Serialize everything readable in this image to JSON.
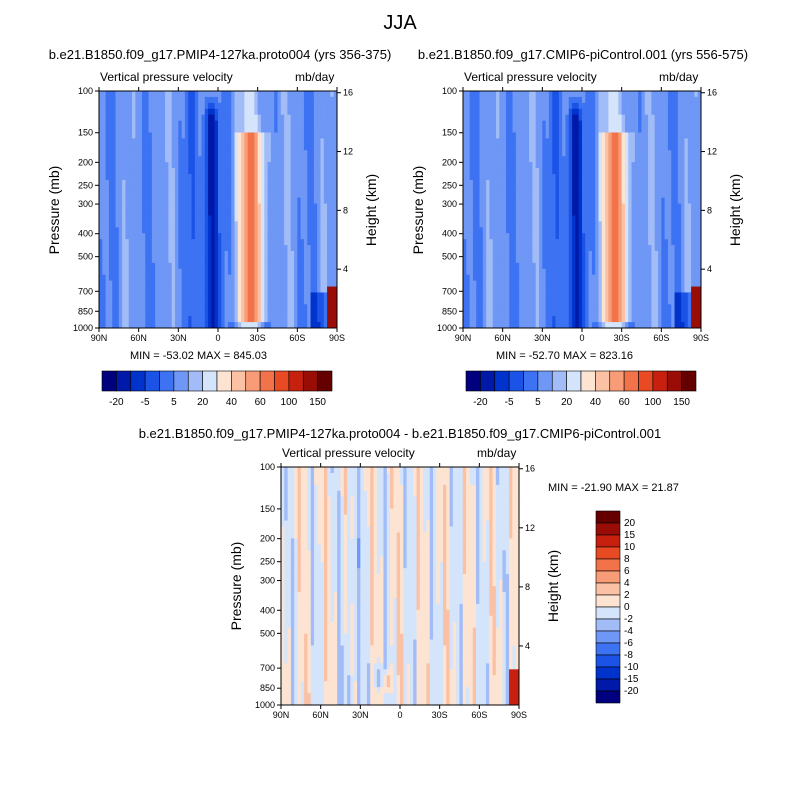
{
  "figure": {
    "title": "JJA"
  },
  "colors": {
    "scale": [
      "#00007f",
      "#0019a8",
      "#0033cc",
      "#1a53e6",
      "#3d73f2",
      "#6f97f5",
      "#a1bcf7",
      "#d4e4fb",
      "#fde4d2",
      "#fbc1a4",
      "#f79c76",
      "#f2734a",
      "#e84a24",
      "#c8200f",
      "#9a0d07",
      "#650000"
    ],
    "diff_scale": [
      "#00007f",
      "#0019a8",
      "#0033cc",
      "#1a53e6",
      "#3d73f2",
      "#6f97f5",
      "#a1bcf7",
      "#d4e4fb",
      "#fde4d2",
      "#fbc1a4",
      "#f79c76",
      "#f2734a",
      "#e84a24",
      "#c8200f",
      "#9a0d07",
      "#650000"
    ]
  },
  "chart_data": [
    {
      "type": "heatmap",
      "id": "top-left",
      "title": "b.e21.B1850.f09_g17.PMIP4-127ka.proto004 (yrs 356-375)",
      "left_string": "Vertical pressure velocity",
      "right_string": "mb/day",
      "xlabel": "",
      "ylabel": "Pressure (mb)",
      "ylabel_right": "Height (km)",
      "x_ticks": [
        "90N",
        "60N",
        "30N",
        "0",
        "30S",
        "60S",
        "90S"
      ],
      "x_values": [
        90,
        60,
        30,
        0,
        -30,
        -60,
        -90
      ],
      "y_ticks": [
        "100",
        "150",
        "200",
        "250",
        "300",
        "400",
        "500",
        "700",
        "850",
        "1000"
      ],
      "y_values": [
        100,
        150,
        200,
        250,
        300,
        400,
        500,
        700,
        850,
        1000
      ],
      "height_ticks": [
        "16",
        "12",
        "8",
        "4"
      ],
      "height_values": [
        16,
        12,
        8,
        4
      ],
      "ylim": [
        1000,
        100
      ],
      "xlim": [
        90,
        -90
      ],
      "min_label": "MIN = -53.02   MAX = 845.03",
      "colorbar_labels": [
        "-20",
        "-5",
        "5",
        "20",
        "40",
        "60",
        "100",
        "150"
      ],
      "features": [
        {
          "name": "descending-band",
          "lat": 5,
          "width": 6,
          "strength": -0.95
        },
        {
          "name": "rising-column",
          "lat": -25,
          "width": 10,
          "strength": 0.85
        }
      ]
    },
    {
      "type": "heatmap",
      "id": "top-right",
      "title": "b.e21.B1850.f09_g17.CMIP6-piControl.001 (yrs 556-575)",
      "left_string": "Vertical pressure velocity",
      "right_string": "mb/day",
      "xlabel": "",
      "ylabel": "Pressure (mb)",
      "ylabel_right": "Height (km)",
      "x_ticks": [
        "90N",
        "60N",
        "30N",
        "0",
        "30S",
        "60S",
        "90S"
      ],
      "x_values": [
        90,
        60,
        30,
        0,
        -30,
        -60,
        -90
      ],
      "y_ticks": [
        "100",
        "150",
        "200",
        "250",
        "300",
        "400",
        "500",
        "700",
        "850",
        "1000"
      ],
      "y_values": [
        100,
        150,
        200,
        250,
        300,
        400,
        500,
        700,
        850,
        1000
      ],
      "height_ticks": [
        "16",
        "12",
        "8",
        "4"
      ],
      "height_values": [
        16,
        12,
        8,
        4
      ],
      "ylim": [
        1000,
        100
      ],
      "xlim": [
        90,
        -90
      ],
      "min_label": "MIN = -52.70   MAX = 823.16",
      "colorbar_labels": [
        "-20",
        "-5",
        "5",
        "20",
        "40",
        "60",
        "100",
        "150"
      ],
      "features": [
        {
          "name": "descending-band",
          "lat": 5,
          "width": 6,
          "strength": -0.95
        },
        {
          "name": "rising-column",
          "lat": -25,
          "width": 10,
          "strength": 0.85
        }
      ]
    },
    {
      "type": "heatmap",
      "id": "bottom-diff",
      "title": "b.e21.B1850.f09_g17.PMIP4-127ka.proto004 - b.e21.B1850.f09_g17.CMIP6-piControl.001",
      "left_string": "Vertical pressure velocity",
      "right_string": "mb/day",
      "xlabel": "",
      "ylabel": "Pressure (mb)",
      "ylabel_right": "Height (km)",
      "x_ticks": [
        "90N",
        "60N",
        "30N",
        "0",
        "30S",
        "60S",
        "90S"
      ],
      "x_values": [
        90,
        60,
        30,
        0,
        -30,
        -60,
        -90
      ],
      "y_ticks": [
        "100",
        "150",
        "200",
        "250",
        "300",
        "400",
        "500",
        "700",
        "850",
        "1000"
      ],
      "y_values": [
        100,
        150,
        200,
        250,
        300,
        400,
        500,
        700,
        850,
        1000
      ],
      "height_ticks": [
        "16",
        "12",
        "8",
        "4"
      ],
      "height_values": [
        16,
        12,
        8,
        4
      ],
      "ylim": [
        1000,
        100
      ],
      "xlim": [
        90,
        -90
      ],
      "min_label": "MIN = -21.90   MAX =  21.87",
      "colorbar_labels": [
        "20",
        "15",
        "10",
        "8",
        "6",
        "4",
        "2",
        "0",
        "-2",
        "-4",
        "-6",
        "-8",
        "-10",
        "-15",
        "-20"
      ]
    }
  ]
}
